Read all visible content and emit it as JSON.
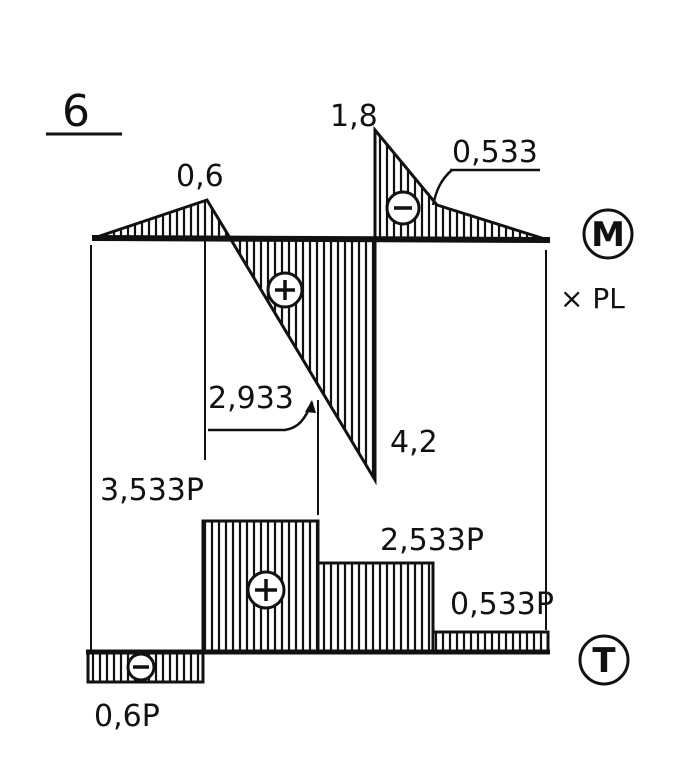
{
  "figure": {
    "panel_label": "6"
  },
  "moment_diagram": {
    "symbol": "M",
    "unit": "× PL",
    "signs": {
      "negative": "−",
      "positive": "+"
    },
    "values": {
      "left_peak": "0,6",
      "top_right": "1,8",
      "right_slope": "0,533",
      "lower_mid": "2,933",
      "bottom_right": "4,2"
    }
  },
  "shear_diagram": {
    "symbol": "T",
    "signs": {
      "negative": "−",
      "positive": "+"
    },
    "values": {
      "left_neg": "0,6P",
      "first_pos": "3,533P",
      "second_pos": "2,533P",
      "third_pos": "0,533P"
    }
  },
  "colors": {
    "ink": "#111111",
    "paper": "#ffffff"
  }
}
